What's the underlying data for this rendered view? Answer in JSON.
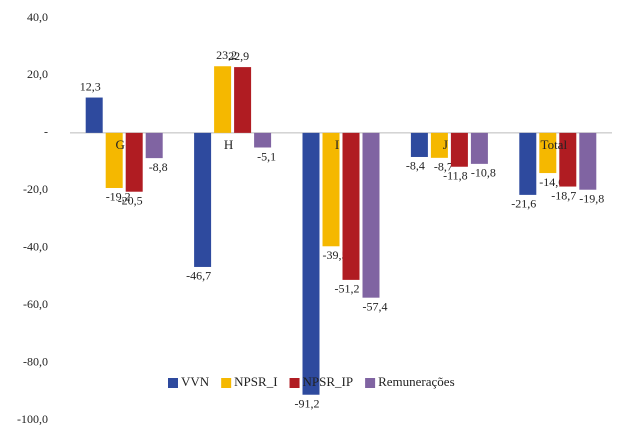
{
  "chart_data": {
    "type": "bar",
    "categories": [
      "G",
      "H",
      "I",
      "J",
      "Total"
    ],
    "series": [
      {
        "name": "VVN",
        "color": "#2e4a9e",
        "values": [
          12.3,
          -46.7,
          -91.2,
          -8.4,
          -21.6
        ],
        "value_labels": [
          "12,3",
          "-46,7",
          "-91,2",
          "-8,4",
          "-21,6"
        ]
      },
      {
        "name": "NPSR_I",
        "color": "#f5b800",
        "values": [
          -19.2,
          23.2,
          -39.5,
          -8.7,
          -14.0
        ],
        "value_labels": [
          "-19,2",
          "23,2",
          "-39,5",
          "-8,7",
          "-14,0"
        ]
      },
      {
        "name": "NPSR_IP",
        "color": "#b01c22",
        "values": [
          -20.5,
          22.9,
          -51.2,
          -11.8,
          -18.7
        ],
        "value_labels": [
          "-20,5",
          "22,9",
          "-51,2",
          "-11,8",
          "-18,7"
        ]
      },
      {
        "name": "Remunerações",
        "color": "#8064a2",
        "values": [
          -8.8,
          -5.1,
          -57.4,
          -10.8,
          -19.8
        ],
        "value_labels": [
          "-8,8",
          "-5,1",
          "-57,4",
          "-10,8",
          "-19,8"
        ]
      }
    ],
    "ylim": [
      -100,
      40
    ],
    "yticks": [
      {
        "value": -100,
        "label": "-100,0"
      },
      {
        "value": -80,
        "label": "-80,0"
      },
      {
        "value": -60,
        "label": "-60,0"
      },
      {
        "value": -40,
        "label": "-40,0"
      },
      {
        "value": -20,
        "label": "-20,0"
      },
      {
        "value": 0,
        "label": "-"
      },
      {
        "value": 20,
        "label": "20,0"
      },
      {
        "value": 40,
        "label": "40,0"
      }
    ],
    "legend": "bottom"
  }
}
